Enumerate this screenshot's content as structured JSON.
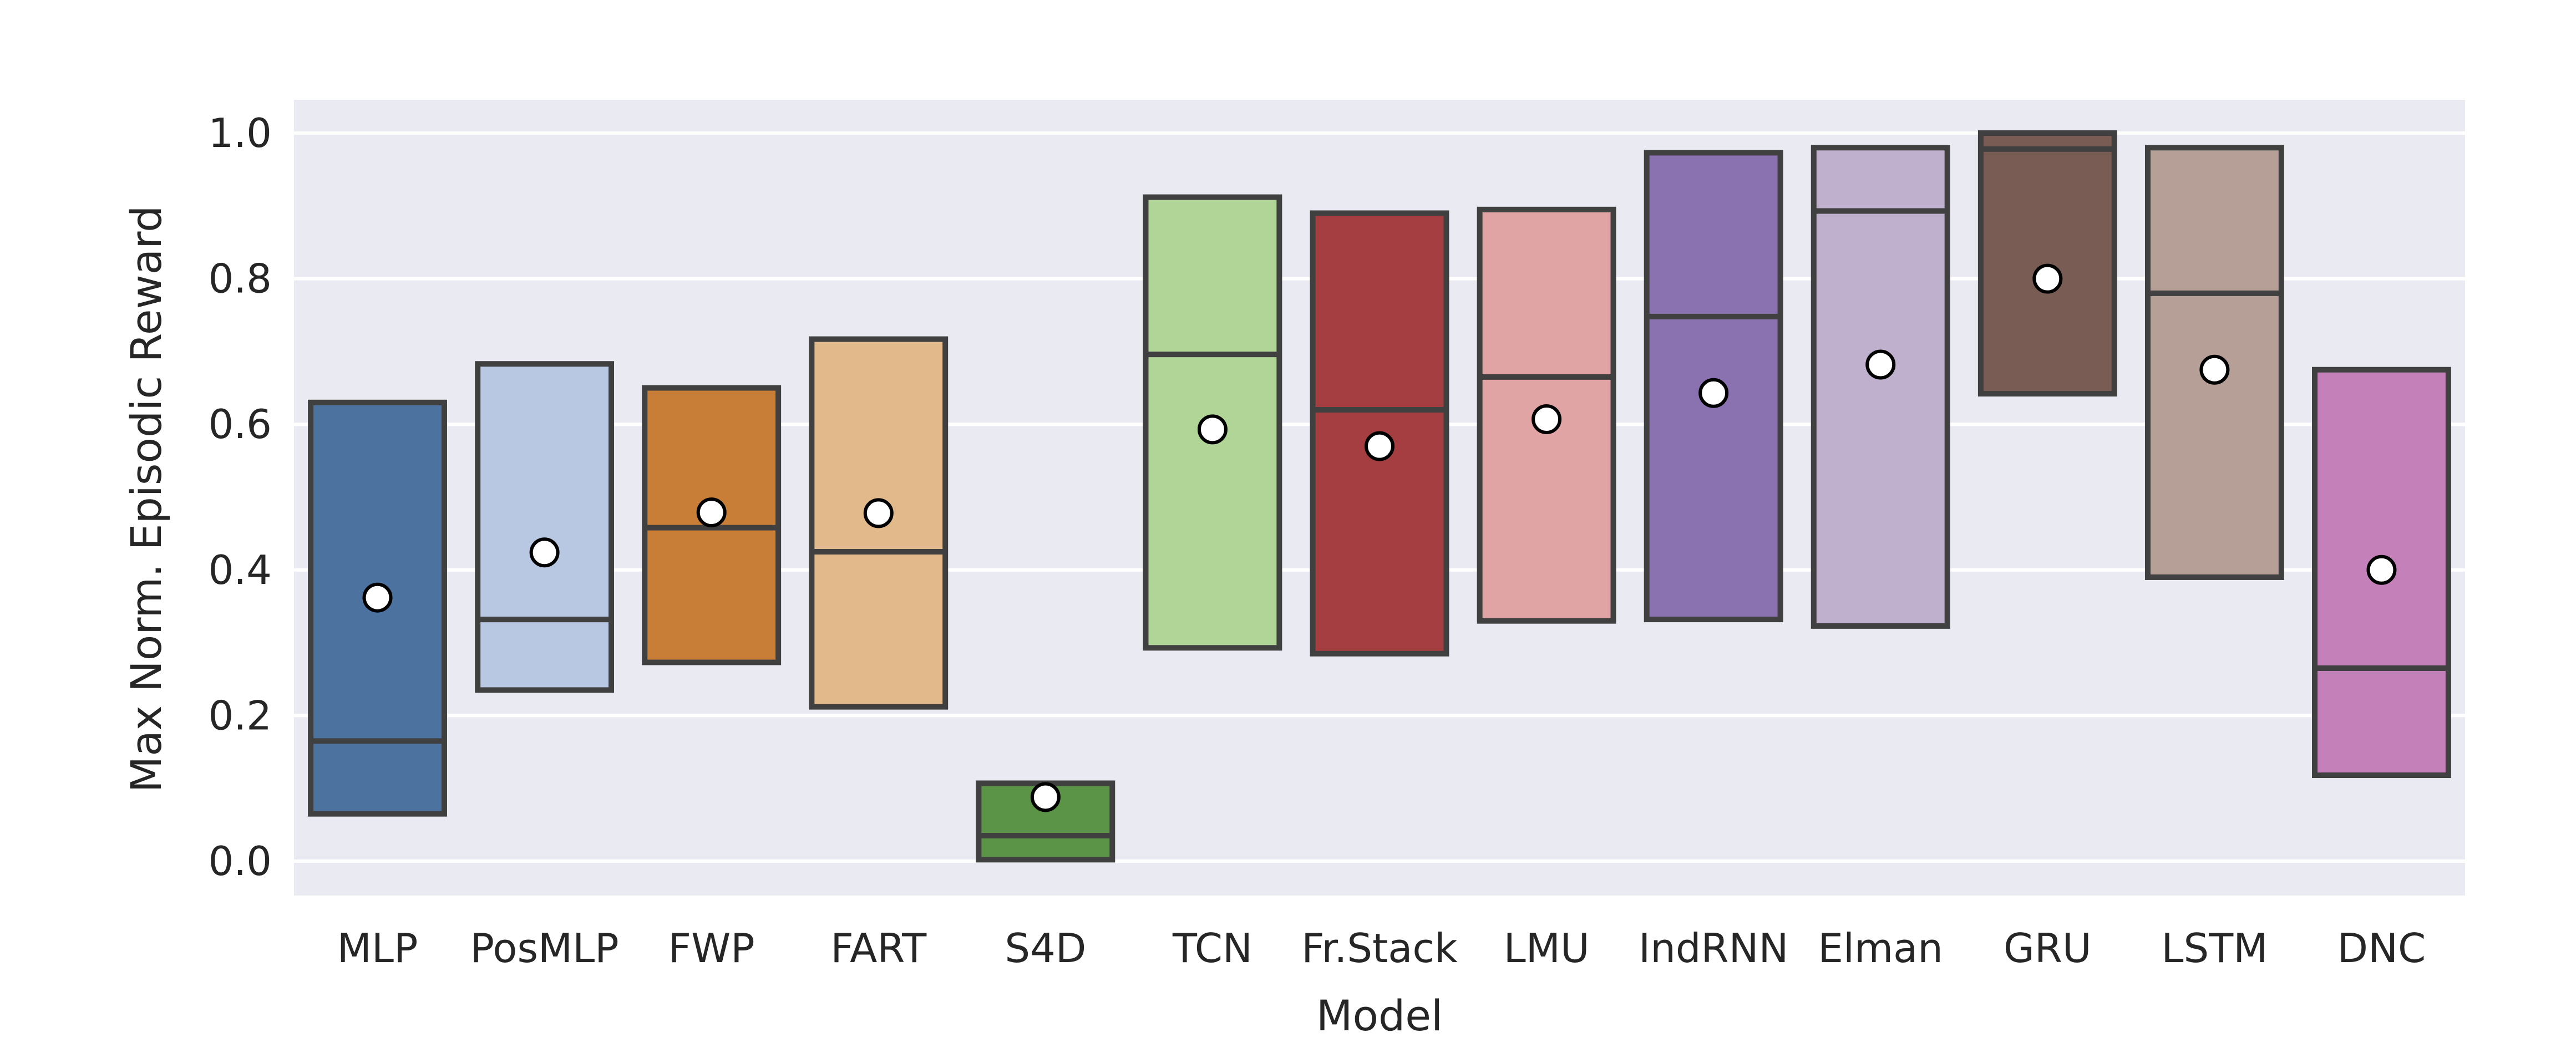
{
  "chart_data": {
    "type": "box",
    "title": "",
    "xlabel": "Model",
    "ylabel": "Max Norm. Episodic Reward",
    "ylim": [
      -0.05,
      1.05
    ],
    "yticks": [
      0.0,
      0.2,
      0.4,
      0.6,
      0.8,
      1.0
    ],
    "ytick_labels": [
      "0.0",
      "0.2",
      "0.4",
      "0.6",
      "0.8",
      "1.0"
    ],
    "grid": true,
    "legend": "none",
    "series": [
      {
        "label": "MLP",
        "color": "#4c72a0",
        "q1": 0.065,
        "median": 0.165,
        "q3": 0.63,
        "mean": 0.362
      },
      {
        "label": "PosMLP",
        "color": "#b8c8e2",
        "q1": 0.235,
        "median": 0.332,
        "q3": 0.683,
        "mean": 0.424
      },
      {
        "label": "FWP",
        "color": "#c97e37",
        "q1": 0.273,
        "median": 0.458,
        "q3": 0.65,
        "mean": 0.479
      },
      {
        "label": "FART",
        "color": "#e2b98a",
        "q1": 0.212,
        "median": 0.425,
        "q3": 0.717,
        "mean": 0.478
      },
      {
        "label": "S4D",
        "color": "#5b9447",
        "q1": 0.002,
        "median": 0.035,
        "q3": 0.107,
        "mean": 0.088
      },
      {
        "label": "TCN",
        "color": "#b0d597",
        "q1": 0.293,
        "median": 0.696,
        "q3": 0.912,
        "mean": 0.593
      },
      {
        "label": "Fr.Stack",
        "color": "#a53e41",
        "q1": 0.285,
        "median": 0.62,
        "q3": 0.89,
        "mean": 0.57
      },
      {
        "label": "LMU",
        "color": "#e1a4a4",
        "q1": 0.33,
        "median": 0.665,
        "q3": 0.895,
        "mean": 0.607
      },
      {
        "label": "IndRNN",
        "color": "#8a72b1",
        "q1": 0.332,
        "median": 0.748,
        "q3": 0.973,
        "mean": 0.643
      },
      {
        "label": "Elman",
        "color": "#bfb0cd",
        "q1": 0.323,
        "median": 0.893,
        "q3": 0.98,
        "mean": 0.682
      },
      {
        "label": "GRU",
        "color": "#795c53",
        "q1": 0.642,
        "median": 0.978,
        "q3": 1.0,
        "mean": 0.8
      },
      {
        "label": "LSTM",
        "color": "#b59f97",
        "q1": 0.39,
        "median": 0.78,
        "q3": 0.98,
        "mean": 0.675
      },
      {
        "label": "DNC",
        "color": "#c480b9",
        "q1": 0.118,
        "median": 0.265,
        "q3": 0.675,
        "mean": 0.4
      }
    ]
  }
}
